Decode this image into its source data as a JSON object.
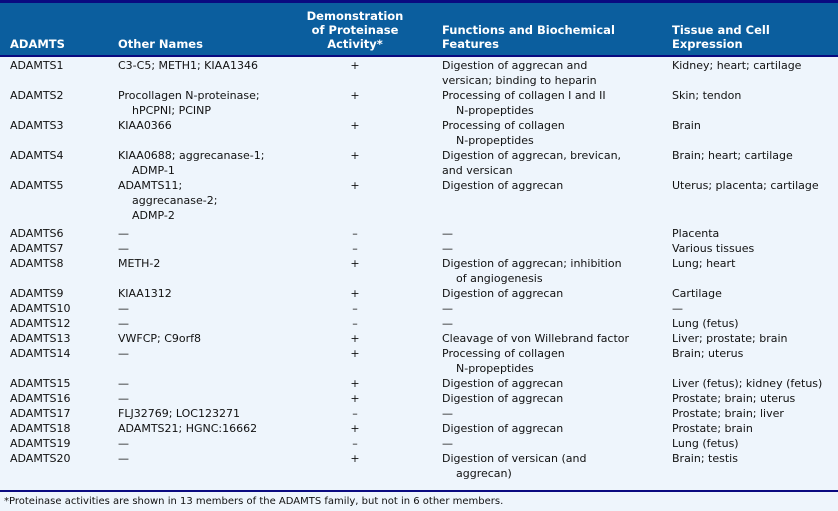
{
  "headers": {
    "adamts": "ADAMTS",
    "other_names": "Other Names",
    "activity": [
      "Demonstration",
      "of Proteinase",
      "Activity*"
    ],
    "functions": [
      "Functions and Biochemical",
      "Features"
    ],
    "expression": [
      "Tissue and Cell",
      "Expression"
    ]
  },
  "rows": [
    {
      "name": "ADAMTS1",
      "other": [
        "C3-C5; METH1; KIAA1346"
      ],
      "activity": "+",
      "functions": [
        "Digestion of aggrecan and",
        "versican; binding to heparin"
      ],
      "expression": [
        "Kidney; heart; cartilage"
      ]
    },
    {
      "name": "ADAMTS2",
      "other": [
        "Procollagen N-proteinase;",
        "hPCPNI; PCINP"
      ],
      "activity": "+",
      "functions": [
        "Processing of collagen I and II",
        "N-propeptides"
      ],
      "expression": [
        "Skin; tendon"
      ]
    },
    {
      "name": "ADAMTS3",
      "other": [
        "KIAA0366"
      ],
      "activity": "+",
      "functions": [
        "Processing of collagen",
        "N-propeptides"
      ],
      "expression": [
        "Brain"
      ]
    },
    {
      "name": "ADAMTS4",
      "other": [
        "KIAA0688; aggrecanase-1;",
        "ADMP-1"
      ],
      "activity": "+",
      "functions": [
        "Digestion of aggrecan, brevican,",
        "and versican"
      ],
      "expression": [
        "Brain; heart; cartilage"
      ]
    },
    {
      "name": "ADAMTS5",
      "other": [
        "ADAMTS11;",
        "aggrecanase-2;",
        "ADMP-2"
      ],
      "activity": "+",
      "functions": [
        "Digestion of aggrecan"
      ],
      "expression": [
        "Uterus; placenta; cartilage"
      ]
    },
    {
      "name": "ADAMTS6",
      "other": [
        "—"
      ],
      "activity": "–",
      "functions": [
        "—"
      ],
      "expression": [
        "Placenta"
      ]
    },
    {
      "name": "ADAMTS7",
      "other": [
        "—"
      ],
      "activity": "–",
      "functions": [
        "—"
      ],
      "expression": [
        "Various tissues"
      ]
    },
    {
      "name": "ADAMTS8",
      "other": [
        "METH-2"
      ],
      "activity": "+",
      "functions": [
        "Digestion of aggrecan; inhibition",
        "of angiogenesis"
      ],
      "expression": [
        "Lung; heart"
      ]
    },
    {
      "name": "ADAMTS9",
      "other": [
        "KIAA1312"
      ],
      "activity": "+",
      "functions": [
        "Digestion of aggrecan"
      ],
      "expression": [
        "Cartilage"
      ]
    },
    {
      "name": "ADAMTS10",
      "other": [
        "—"
      ],
      "activity": "–",
      "functions": [
        "—"
      ],
      "expression": [
        "—"
      ]
    },
    {
      "name": "ADAMTS12",
      "other": [
        "—"
      ],
      "activity": "–",
      "functions": [
        "—"
      ],
      "expression": [
        "Lung (fetus)"
      ]
    },
    {
      "name": "ADAMTS13",
      "other": [
        "VWFCP; C9orf8"
      ],
      "activity": "+",
      "functions": [
        "Cleavage of von Willebrand factor"
      ],
      "expression": [
        "Liver; prostate; brain"
      ]
    },
    {
      "name": "ADAMTS14",
      "other": [
        "—"
      ],
      "activity": "+",
      "functions": [
        "Processing of collagen",
        "N-propeptides"
      ],
      "expression": [
        "Brain; uterus"
      ]
    },
    {
      "name": "ADAMTS15",
      "other": [
        "—"
      ],
      "activity": "+",
      "functions": [
        "Digestion of aggrecan"
      ],
      "expression": [
        "Liver (fetus); kidney (fetus)"
      ]
    },
    {
      "name": "ADAMTS16",
      "other": [
        "—"
      ],
      "activity": "+",
      "functions": [
        "Digestion of aggrecan"
      ],
      "expression": [
        "Prostate; brain; uterus"
      ]
    },
    {
      "name": "ADAMTS17",
      "other": [
        "FLJ32769; LOC123271"
      ],
      "activity": "–",
      "functions": [
        "—"
      ],
      "expression": [
        "Prostate; brain; liver"
      ]
    },
    {
      "name": "ADAMTS18",
      "other": [
        "ADAMTS21; HGNC:16662"
      ],
      "activity": "+",
      "functions": [
        "Digestion of aggrecan"
      ],
      "expression": [
        "Prostate; brain"
      ]
    },
    {
      "name": "ADAMTS19",
      "other": [
        "—"
      ],
      "activity": "–",
      "functions": [
        "—"
      ],
      "expression": [
        "Lung (fetus)"
      ]
    },
    {
      "name": "ADAMTS20",
      "other": [
        "—"
      ],
      "activity": "+",
      "functions": [
        "Digestion of versican (and",
        "aggrecan)"
      ],
      "expression": [
        "Brain; testis"
      ]
    }
  ],
  "footnote": "*Proteinase activities are shown in 13 members of the ADAMTS family, but not in 6 other members.",
  "colors": {
    "header_bg": "#0b5e9e",
    "rule": "#0a0a80",
    "body_bg": "#eef5fc"
  }
}
